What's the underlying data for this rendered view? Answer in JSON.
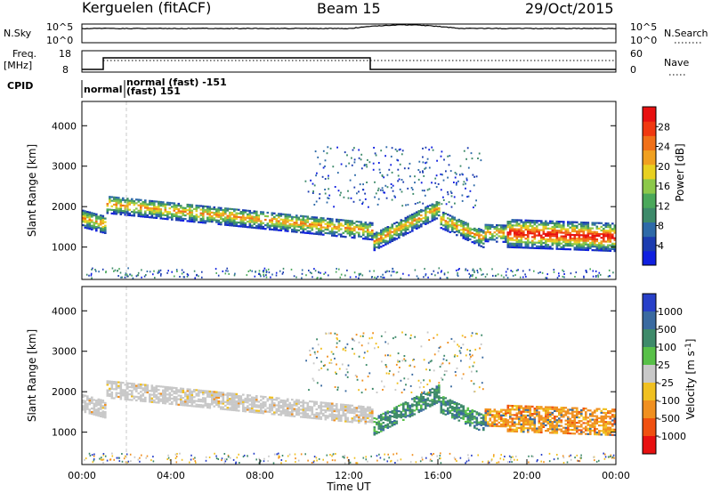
{
  "header": {
    "station": "Kerguelen (fitACF)",
    "beam": "Beam 15",
    "date": "29/Oct/2015"
  },
  "colors": {
    "frame": "#000000",
    "dash": "#c8c8c8",
    "ground_scatter": "#c8c8c8"
  },
  "panels": {
    "nsky": {
      "label": "N.Sky",
      "y_ticks_left": [
        "10^5",
        "10^0"
      ],
      "right_label": "N.Search",
      "y_ticks_right": [
        "10^5",
        "10^0"
      ]
    },
    "freq": {
      "label_line1": "Freq.",
      "label_line2": "[MHz]",
      "y_ticks_left": [
        "18",
        "8"
      ],
      "right_label": "Nave",
      "y_ticks_right": [
        "60",
        "0"
      ]
    },
    "cpid": {
      "label": "CPID",
      "modes": [
        "normal",
        "normal (fast) -151",
        "(fast) 151"
      ]
    }
  },
  "chart_data": [
    {
      "type": "heatmap",
      "name": "power",
      "ylabel": "Slant Range [km]",
      "y_ticks": [
        1000,
        2000,
        3000,
        4000
      ],
      "ylim": [
        200,
        4600
      ],
      "xlim_hours": [
        0,
        24
      ],
      "colorbar": {
        "label": "Power [dB]",
        "ticks": [
          4,
          8,
          12,
          16,
          20,
          24,
          28
        ],
        "range": [
          0,
          32
        ],
        "colors": [
          "#1020e0",
          "#1c3cb0",
          "#2e6aa8",
          "#3d8a6a",
          "#4aa85a",
          "#8cc84a",
          "#e8d020",
          "#f0a020",
          "#f07018",
          "#f03810",
          "#e81010"
        ]
      }
    },
    {
      "type": "heatmap",
      "name": "velocity",
      "ylabel": "Slant Range [km]",
      "y_ticks": [
        1000,
        2000,
        3000,
        4000
      ],
      "ylim": [
        200,
        4600
      ],
      "xlim_hours": [
        0,
        24
      ],
      "xlabel": "Time UT",
      "x_ticks": [
        "00:00",
        "04:00",
        "08:00",
        "12:00",
        "16:00",
        "20:00",
        "00:00"
      ],
      "colorbar": {
        "label": "Velocity [m s^-1]",
        "ticks": [
          "1000",
          "500",
          "100",
          "25",
          "-25",
          "-100",
          "-500",
          "-1000"
        ],
        "colors": [
          "#2840c8",
          "#3a6aa0",
          "#3e8a6a",
          "#58c048",
          "#c8c8c8",
          "#f0c020",
          "#f09020",
          "#f05010",
          "#e81010"
        ]
      }
    }
  ]
}
